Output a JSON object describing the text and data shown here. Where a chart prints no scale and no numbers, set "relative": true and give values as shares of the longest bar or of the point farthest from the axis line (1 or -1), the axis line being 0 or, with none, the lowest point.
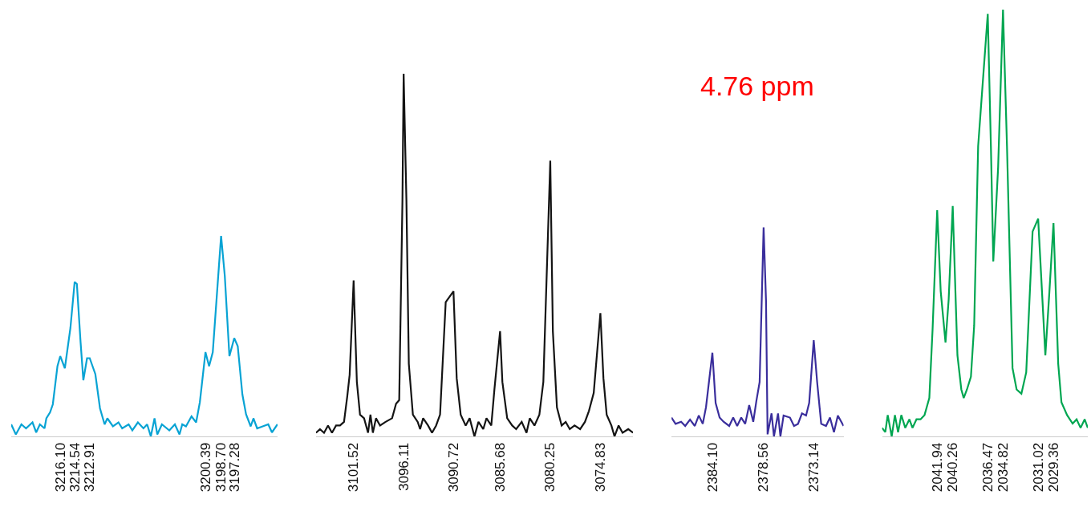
{
  "chart_data": [
    {
      "type": "line",
      "relative": true,
      "color": "#08a3d4",
      "xlim": [
        3221.4,
        3192.6
      ],
      "xticks": [
        {
          "value": 3216.1,
          "label": "3216.10"
        },
        3214.54,
        3212.91,
        3200.39,
        {
          "value": 3198.7,
          "label": "3198.70"
        },
        3197.28
      ],
      "x": [
        3221.4,
        3220.9,
        3220.3,
        3219.8,
        3219.1,
        3218.7,
        3218.3,
        3217.8,
        3217.6,
        3217.2,
        3216.9,
        3216.4,
        3216.1,
        3215.6,
        3215.0,
        3214.54,
        3214.3,
        3213.9,
        3213.6,
        3213.2,
        3212.91,
        3212.3,
        3211.8,
        3211.3,
        3211.0,
        3210.4,
        3209.8,
        3209.4,
        3208.7,
        3208.3,
        3207.7,
        3207.1,
        3206.7,
        3206.3,
        3205.9,
        3205.6,
        3205.1,
        3204.3,
        3203.7,
        3203.2,
        3202.9,
        3202.5,
        3201.9,
        3201.4,
        3201.0,
        3200.39,
        3200.0,
        3199.6,
        3198.7,
        3198.3,
        3197.8,
        3197.28,
        3196.9,
        3196.4,
        3196.0,
        3195.5,
        3195.2,
        3194.8,
        3194.2,
        3193.6,
        3193.2,
        3192.6
      ],
      "values": [
        0.06,
        0.01,
        0.06,
        0.04,
        0.07,
        0.02,
        0.06,
        0.04,
        0.09,
        0.12,
        0.16,
        0.35,
        0.4,
        0.34,
        0.54,
        0.77,
        0.76,
        0.47,
        0.28,
        0.39,
        0.39,
        0.31,
        0.14,
        0.06,
        0.09,
        0.05,
        0.07,
        0.04,
        0.06,
        0.03,
        0.07,
        0.04,
        0.06,
        0.0,
        0.09,
        0.01,
        0.06,
        0.03,
        0.06,
        0.01,
        0.06,
        0.05,
        0.1,
        0.07,
        0.17,
        0.42,
        0.35,
        0.42,
        1.0,
        0.8,
        0.4,
        0.49,
        0.45,
        0.21,
        0.11,
        0.05,
        0.09,
        0.04,
        0.05,
        0.06,
        0.02,
        0.06
      ]
    },
    {
      "type": "line",
      "relative": true,
      "color": "#141414",
      "xlim": [
        3105.59,
        3071.3
      ],
      "xticks": [
        3101.52,
        3096.11,
        3090.72,
        3085.68,
        3080.25,
        3074.83
      ],
      "x": [
        3105.59,
        3105.16,
        3104.72,
        3104.29,
        3103.86,
        3103.42,
        3102.99,
        3102.56,
        3102.21,
        3101.95,
        3101.52,
        3101.17,
        3100.83,
        3100.39,
        3099.96,
        3099.7,
        3099.44,
        3099.1,
        3098.66,
        3098.06,
        3097.36,
        3096.93,
        3096.59,
        3096.24,
        3096.11,
        3095.81,
        3095.55,
        3095.11,
        3094.59,
        3094.33,
        3094.0,
        3093.47,
        3093.04,
        3092.6,
        3092.17,
        3091.56,
        3090.72,
        3090.37,
        3089.94,
        3089.4,
        3088.97,
        3088.45,
        3088.02,
        3087.5,
        3087.15,
        3086.63,
        3086.29,
        3085.68,
        3085.43,
        3084.91,
        3084.37,
        3083.94,
        3083.34,
        3082.82,
        3082.47,
        3081.96,
        3081.43,
        3081.0,
        3080.25,
        3079.97,
        3079.53,
        3079.02,
        3078.58,
        3078.14,
        3077.62,
        3077.02,
        3076.5,
        3076.07,
        3075.55,
        3074.83,
        3074.5,
        3074.15,
        3073.64,
        3073.3,
        3072.86,
        3072.43,
        3071.82,
        3071.3
      ],
      "values": [
        0.01,
        0.02,
        0.01,
        0.03,
        0.01,
        0.03,
        0.03,
        0.04,
        0.11,
        0.17,
        0.43,
        0.15,
        0.06,
        0.05,
        0.01,
        0.06,
        0.01,
        0.05,
        0.03,
        0.04,
        0.05,
        0.09,
        0.1,
        0.65,
        1.0,
        0.65,
        0.2,
        0.06,
        0.04,
        0.02,
        0.05,
        0.03,
        0.01,
        0.03,
        0.06,
        0.37,
        0.4,
        0.16,
        0.06,
        0.03,
        0.05,
        0.0,
        0.04,
        0.02,
        0.05,
        0.03,
        0.13,
        0.29,
        0.15,
        0.05,
        0.03,
        0.02,
        0.04,
        0.01,
        0.05,
        0.03,
        0.06,
        0.15,
        0.76,
        0.29,
        0.08,
        0.03,
        0.04,
        0.02,
        0.03,
        0.02,
        0.04,
        0.07,
        0.12,
        0.34,
        0.16,
        0.06,
        0.03,
        0.0,
        0.03,
        0.01,
        0.02,
        0.01
      ]
    },
    {
      "type": "line",
      "relative": true,
      "color": "#3a2e9c",
      "xlim": [
        2388.52,
        2369.91
      ],
      "xticks": [
        {
          "value": 2384.1,
          "label": "2384.10"
        },
        2378.56,
        2373.14
      ],
      "annotations": [
        "4.76 ppm"
      ],
      "x": [
        2388.52,
        2388.08,
        2387.48,
        2387.04,
        2386.52,
        2386.0,
        2385.57,
        2385.14,
        2384.79,
        2384.1,
        2383.75,
        2383.32,
        2382.89,
        2382.28,
        2381.85,
        2381.42,
        2380.98,
        2380.55,
        2380.12,
        2379.68,
        2379.34,
        2378.99,
        2378.56,
        2378.3,
        2378.13,
        2377.7,
        2377.44,
        2377.0,
        2376.74,
        2376.4,
        2375.71,
        2375.27,
        2374.84,
        2374.41,
        2373.97,
        2373.63,
        2373.14,
        2372.77,
        2372.33,
        2371.81,
        2371.38,
        2370.95,
        2370.53,
        2369.91
      ],
      "values": [
        0.09,
        0.06,
        0.07,
        0.05,
        0.08,
        0.05,
        0.1,
        0.06,
        0.14,
        0.4,
        0.16,
        0.09,
        0.07,
        0.05,
        0.09,
        0.05,
        0.09,
        0.06,
        0.15,
        0.07,
        0.17,
        0.26,
        1.0,
        0.65,
        0.01,
        0.11,
        0.0,
        0.11,
        0.0,
        0.1,
        0.09,
        0.05,
        0.06,
        0.11,
        0.1,
        0.16,
        0.46,
        0.26,
        0.06,
        0.05,
        0.09,
        0.02,
        0.1,
        0.05
      ]
    },
    {
      "type": "line",
      "relative": true,
      "color": "#00a651",
      "xlim": [
        2047.9,
        2025.65
      ],
      "xticks": [
        2041.94,
        2040.26,
        2036.47,
        2034.82,
        2031.02,
        2029.36
      ],
      "x": [
        2047.9,
        2047.55,
        2047.29,
        2046.86,
        2046.51,
        2046.17,
        2045.82,
        2045.39,
        2044.95,
        2044.61,
        2044.18,
        2043.74,
        2043.31,
        2043.05,
        2042.79,
        2042.44,
        2041.94,
        2041.56,
        2041.04,
        2040.7,
        2040.26,
        2039.75,
        2039.33,
        2039.07,
        2038.72,
        2038.29,
        2037.94,
        2037.51,
        2036.47,
        2036.13,
        2035.87,
        2035.35,
        2034.82,
        2034.39,
        2033.79,
        2033.35,
        2032.83,
        2032.31,
        2031.62,
        2031.02,
        2030.24,
        2029.8,
        2029.36,
        2028.85,
        2028.5,
        2027.89,
        2027.29,
        2026.86,
        2026.43,
        2025.99,
        2025.65
      ],
      "values": [
        0.02,
        0.01,
        0.05,
        0.0,
        0.05,
        0.01,
        0.05,
        0.02,
        0.04,
        0.02,
        0.04,
        0.04,
        0.05,
        0.07,
        0.09,
        0.25,
        0.53,
        0.34,
        0.22,
        0.32,
        0.54,
        0.19,
        0.11,
        0.09,
        0.11,
        0.14,
        0.26,
        0.68,
        0.99,
        0.68,
        0.41,
        0.63,
        1.0,
        0.68,
        0.16,
        0.11,
        0.1,
        0.15,
        0.48,
        0.51,
        0.19,
        0.34,
        0.5,
        0.17,
        0.08,
        0.05,
        0.03,
        0.04,
        0.02,
        0.04,
        0.02
      ]
    }
  ]
}
